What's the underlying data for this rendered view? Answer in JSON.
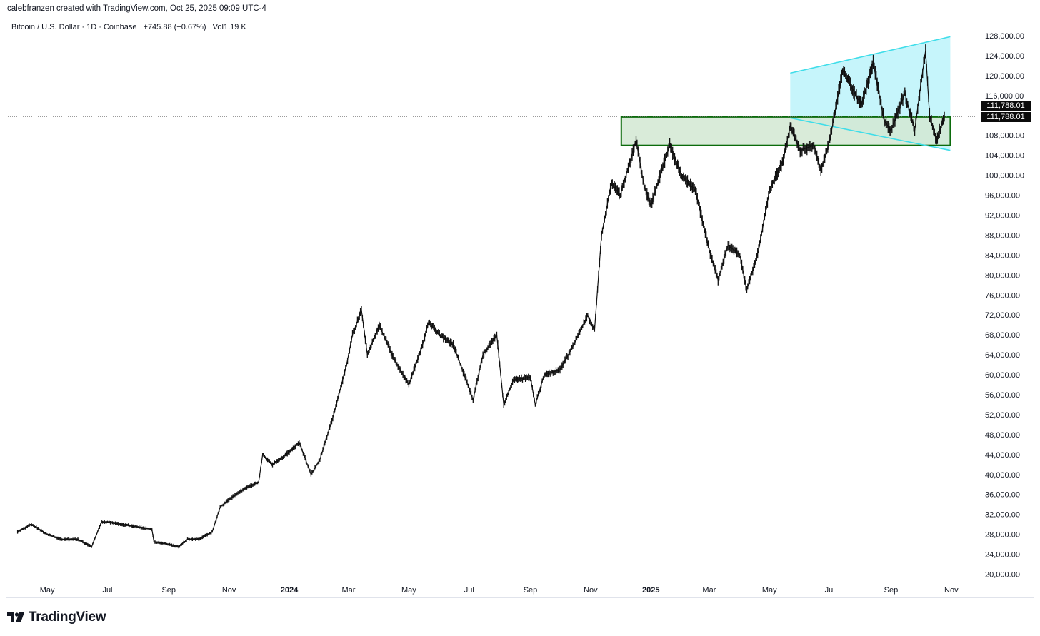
{
  "credit": "calebfranzen created with TradingView.com, Oct 25, 2025 09:09 UTC-4",
  "header": {
    "symbol": "Bitcoin / U.S. Dollar · 1D · Coinbase",
    "change": "+745.88 (+0.67%)",
    "volume": "Vol1.19 K"
  },
  "price_tags": [
    "111,788.01",
    "111,788.01"
  ],
  "brand": {
    "name": "TradingView",
    "icon": "tradingview-logo-icon"
  },
  "colors": {
    "candle": "#111111",
    "channel_fill": "#c6f5fb",
    "channel_line": "#3fdde9",
    "zone_fill": "#d2e8d2",
    "zone_border": "#0c6b0c",
    "current_line": "#7a7a7a"
  },
  "chart_data": {
    "type": "line",
    "title": "",
    "series": [
      {
        "name": "",
        "x": [
          "2023-04-01",
          "2023-04-15",
          "2023-05-01",
          "2023-05-15",
          "2023-06-01",
          "2023-06-15",
          "2023-06-25",
          "2023-07-01",
          "2023-07-15",
          "2023-08-01",
          "2023-08-15",
          "2023-08-17",
          "2023-09-01",
          "2023-09-11",
          "2023-09-20",
          "2023-10-01",
          "2023-10-15",
          "2023-10-23",
          "2023-11-01",
          "2023-11-15",
          "2023-12-01",
          "2023-12-05",
          "2023-12-15",
          "2024-01-01",
          "2024-01-11",
          "2024-01-23",
          "2024-02-01",
          "2024-02-15",
          "2024-02-28",
          "2024-03-05",
          "2024-03-14",
          "2024-03-20",
          "2024-04-01",
          "2024-04-15",
          "2024-05-01",
          "2024-05-15",
          "2024-05-21",
          "2024-06-01",
          "2024-06-15",
          "2024-07-05",
          "2024-07-15",
          "2024-07-29",
          "2024-08-05",
          "2024-08-15",
          "2024-09-01",
          "2024-09-06",
          "2024-09-15",
          "2024-10-01",
          "2024-10-15",
          "2024-10-29",
          "2024-11-05",
          "2024-11-12",
          "2024-11-22",
          "2024-12-01",
          "2024-12-17",
          "2024-12-25",
          "2025-01-01",
          "2025-01-20",
          "2025-02-01",
          "2025-02-15",
          "2025-03-01",
          "2025-03-10",
          "2025-03-20",
          "2025-04-01",
          "2025-04-08",
          "2025-04-20",
          "2025-05-01",
          "2025-05-15",
          "2025-05-22",
          "2025-06-01",
          "2025-06-15",
          "2025-06-22",
          "2025-07-01",
          "2025-07-14",
          "2025-07-25",
          "2025-08-02",
          "2025-08-14",
          "2025-08-25",
          "2025-09-01",
          "2025-09-15",
          "2025-09-25",
          "2025-10-01",
          "2025-10-06",
          "2025-10-10",
          "2025-10-17",
          "2025-10-25"
        ],
        "values": [
          28500,
          30000,
          28000,
          27000,
          27000,
          25500,
          30500,
          30500,
          30000,
          29500,
          29000,
          26500,
          26000,
          25500,
          27000,
          27000,
          28500,
          33500,
          35000,
          37000,
          38500,
          44000,
          42000,
          44500,
          46500,
          40000,
          43000,
          52000,
          62000,
          68000,
          73000,
          64000,
          70000,
          63500,
          58000,
          66000,
          70500,
          68000,
          66000,
          55000,
          64000,
          68000,
          54000,
          59000,
          59500,
          54000,
          60000,
          61000,
          66000,
          72000,
          69000,
          88000,
          98500,
          96000,
          107000,
          98000,
          94000,
          106000,
          100000,
          97000,
          85000,
          79000,
          86000,
          84000,
          77000,
          85000,
          97000,
          103000,
          110000,
          105000,
          106000,
          101000,
          107000,
          121000,
          117000,
          114000,
          122500,
          111000,
          109000,
          116500,
          109000,
          118000,
          125000,
          112000,
          107000,
          111800
        ]
      }
    ],
    "annotations": [
      {
        "type": "support-resistance-zone",
        "x": [
          "2024-12-02",
          "2025-10-31"
        ],
        "y": [
          106000,
          111700
        ]
      },
      {
        "type": "channel-upper",
        "x": [
          "2025-05-22",
          "2025-10-31"
        ],
        "y": [
          120500,
          127800
        ]
      },
      {
        "type": "channel-lower",
        "x": [
          "2025-05-22",
          "2025-10-31"
        ],
        "y": [
          111500,
          105000
        ]
      },
      {
        "type": "current-price-line",
        "y": 111788.01
      }
    ],
    "xlabel": "",
    "ylabel": "",
    "x_ticks": [
      "May",
      "Jul",
      "Sep",
      "Nov",
      "2024",
      "Mar",
      "May",
      "Jul",
      "Sep",
      "Nov",
      "2025",
      "Mar",
      "May",
      "Jul",
      "Sep",
      "Nov"
    ],
    "x_range": [
      "2023-03-20",
      "2025-11-25"
    ],
    "y_ticks": [
      "20,000.00",
      "24,000.00",
      "28,000.00",
      "32,000.00",
      "36,000.00",
      "40,000.00",
      "44,000.00",
      "48,000.00",
      "52,000.00",
      "56,000.00",
      "60,000.00",
      "64,000.00",
      "68,000.00",
      "72,000.00",
      "76,000.00",
      "80,000.00",
      "84,000.00",
      "88,000.00",
      "92,000.00",
      "96,000.00",
      "100,000.00",
      "104,000.00",
      "108,000.00",
      "112,000.00",
      "116,000.00",
      "120,000.00",
      "124,000.00",
      "128,000.00"
    ],
    "ylim": [
      18000,
      130000
    ],
    "grid": false,
    "legend": "none"
  }
}
